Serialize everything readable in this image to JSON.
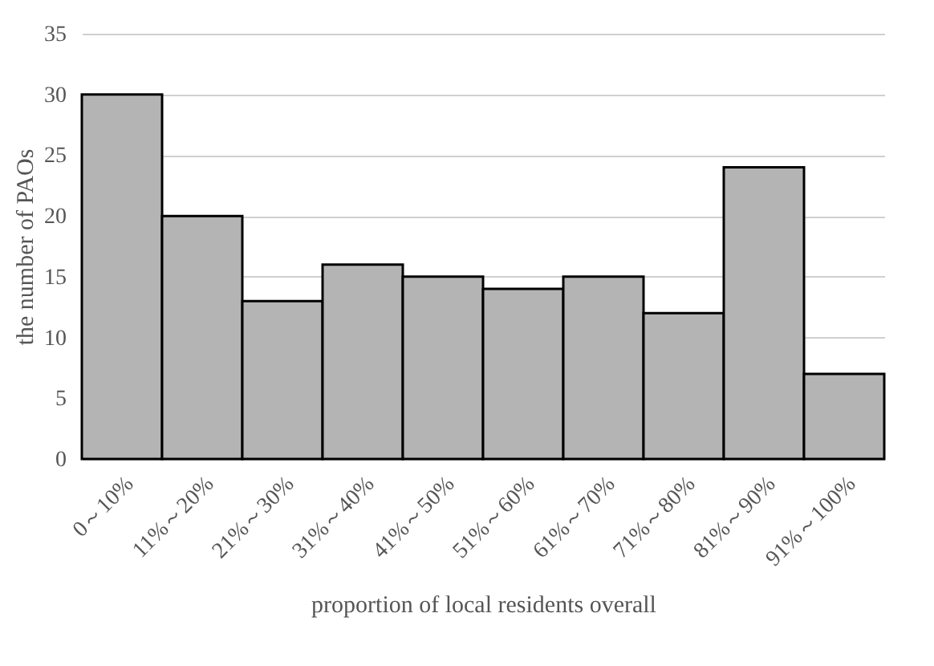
{
  "chart_data": {
    "type": "bar",
    "xlabel": "proportion of local residents overall",
    "ylabel": "the number of PAOs",
    "categories": [
      "0～10%",
      "11%～20%",
      "21%～30%",
      "31%～40%",
      "41%～50%",
      "51%～60%",
      "61%～70%",
      "71%～80%",
      "81%～90%",
      "91%～100%"
    ],
    "values": [
      30,
      20,
      13,
      16,
      15,
      14,
      15,
      12,
      24,
      7
    ],
    "color": "#b4b4b4",
    "ylim": [
      0,
      35
    ],
    "yticks": [
      0,
      5,
      10,
      15,
      20,
      25,
      30,
      35
    ],
    "grid": "y"
  }
}
